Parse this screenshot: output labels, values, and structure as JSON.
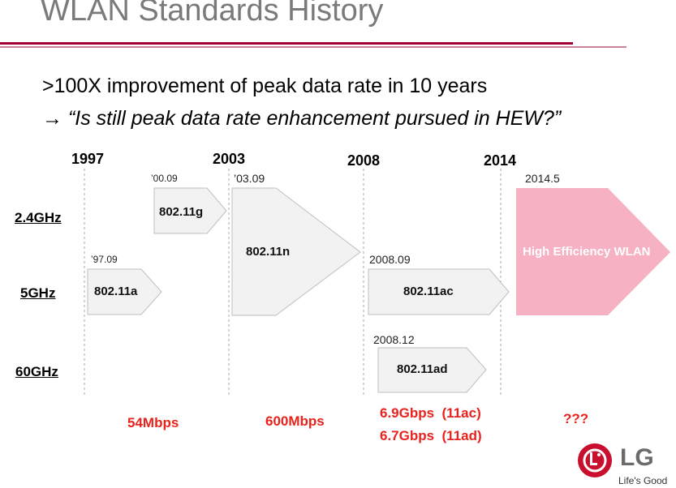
{
  "title": "WLAN Standards History",
  "bullet1": ">100X improvement of peak data rate in 10 years",
  "bullet2": "→ “Is still peak data rate enhancement pursued in HEW?”",
  "years": [
    "1997",
    "2003",
    "2008",
    "2014"
  ],
  "bands": [
    "2.4GHz",
    "5GHz",
    "60GHz"
  ],
  "standards": {
    "g": {
      "date": "’00.09",
      "label": "802.11g"
    },
    "n": {
      "date": "’03.09",
      "label": "802.11n"
    },
    "a": {
      "date": "’97.09",
      "label": "802.11a"
    },
    "ac": {
      "date": "2008.09",
      "label": "802.11ac"
    },
    "ad": {
      "date": "2008.12",
      "label": "802.11ad"
    },
    "hew": {
      "date": "2014.5",
      "label": "High Efficiency WLAN"
    }
  },
  "rates": {
    "r1": "54Mbps",
    "r2": "600Mbps",
    "r3a": "6.9Gbps  (11ac)",
    "r3b": "6.7Gbps  (11ad)",
    "r4": "???"
  },
  "logo": {
    "brand": "LG",
    "slogan": "Life's Good"
  },
  "colors": {
    "accent": "#a50034",
    "rate": "#e8231d",
    "hew": "#f6b1c3",
    "box": "#f2f2f2"
  }
}
